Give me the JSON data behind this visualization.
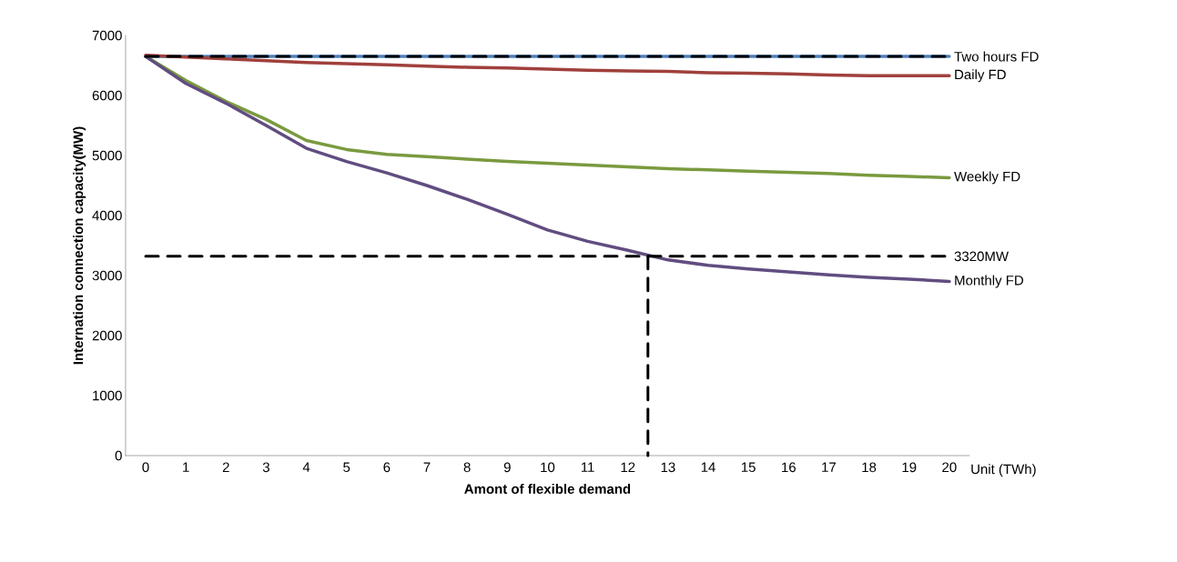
{
  "chart_data": {
    "type": "line",
    "xlabel": "Amont of flexible demand",
    "ylabel": "Internation connection capacity(MW)",
    "annotations": [
      "Unit (TWh)"
    ],
    "x": [
      0,
      1,
      2,
      3,
      4,
      5,
      6,
      7,
      8,
      9,
      10,
      11,
      12,
      13,
      14,
      15,
      16,
      17,
      18,
      19,
      20
    ],
    "xlim": [
      -0.5,
      20.5
    ],
    "xticks": [
      0,
      1,
      2,
      3,
      4,
      5,
      6,
      7,
      8,
      9,
      10,
      11,
      12,
      13,
      14,
      15,
      16,
      17,
      18,
      19,
      20
    ],
    "ylim": [
      0,
      7000
    ],
    "yticks": [
      0,
      1000,
      2000,
      3000,
      4000,
      5000,
      6000,
      7000
    ],
    "marker": "none",
    "series": [
      {
        "name": "Two hours FD",
        "color": "#4f81bd",
        "values": [
          6650,
          6650,
          6650,
          6650,
          6650,
          6650,
          6650,
          6650,
          6650,
          6650,
          6650,
          6650,
          6650,
          6650,
          6650,
          6650,
          6650,
          6650,
          6650,
          6650,
          6650
        ]
      },
      {
        "name": "Daily FD",
        "color": "#a0403c",
        "values": [
          6670,
          6640,
          6610,
          6580,
          6550,
          6530,
          6510,
          6490,
          6470,
          6460,
          6440,
          6420,
          6410,
          6400,
          6380,
          6370,
          6360,
          6340,
          6330,
          6330,
          6330
        ]
      },
      {
        "name": "Weekly FD",
        "color": "#7a9a3f",
        "values": [
          6650,
          6250,
          5900,
          5600,
          5250,
          5100,
          5020,
          4980,
          4940,
          4900,
          4870,
          4840,
          4810,
          4780,
          4760,
          4740,
          4720,
          4700,
          4670,
          4650,
          4630
        ]
      },
      {
        "name": "Monthly FD",
        "color": "#614d80",
        "values": [
          6650,
          6200,
          5870,
          5500,
          5120,
          4900,
          4710,
          4500,
          4270,
          4020,
          3760,
          3570,
          3420,
          3260,
          3170,
          3110,
          3060,
          3010,
          2970,
          2940,
          2900
        ]
      },
      {
        "color": "#000000",
        "line_style": "dashed",
        "x": [
          0,
          20
        ],
        "values": [
          6650,
          6650
        ]
      },
      {
        "name": "3320MW",
        "color": "#000000",
        "line_style": "dashed",
        "x": [
          0,
          20
        ],
        "values": [
          3320,
          3320
        ]
      },
      {
        "color": "#000000",
        "line_style": "dashed",
        "x": [
          12.5,
          12.5
        ],
        "values": [
          3320,
          0
        ]
      }
    ]
  }
}
